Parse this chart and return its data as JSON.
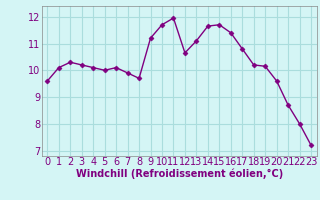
{
  "x": [
    0,
    1,
    2,
    3,
    4,
    5,
    6,
    7,
    8,
    9,
    10,
    11,
    12,
    13,
    14,
    15,
    16,
    17,
    18,
    19,
    20,
    21,
    22,
    23
  ],
  "y": [
    9.6,
    10.1,
    10.3,
    10.2,
    10.1,
    10.0,
    10.1,
    9.9,
    9.7,
    11.2,
    11.7,
    11.95,
    10.65,
    11.1,
    11.65,
    11.7,
    11.4,
    10.8,
    10.2,
    10.15,
    9.6,
    8.7,
    8.0,
    7.2
  ],
  "line_color": "#800080",
  "marker": "D",
  "markersize": 2.5,
  "linewidth": 1,
  "bg_color": "#d4f5f5",
  "grid_color": "#aadddd",
  "xlabel": "Windchill (Refroidissement éolien,°C)",
  "xlabel_fontsize": 7,
  "tick_fontsize": 7,
  "ylim": [
    6.8,
    12.4
  ],
  "xlim": [
    -0.5,
    23.5
  ],
  "yticks": [
    7,
    8,
    9,
    10,
    11,
    12
  ],
  "xticks": [
    0,
    1,
    2,
    3,
    4,
    5,
    6,
    7,
    8,
    9,
    10,
    11,
    12,
    13,
    14,
    15,
    16,
    17,
    18,
    19,
    20,
    21,
    22,
    23
  ]
}
